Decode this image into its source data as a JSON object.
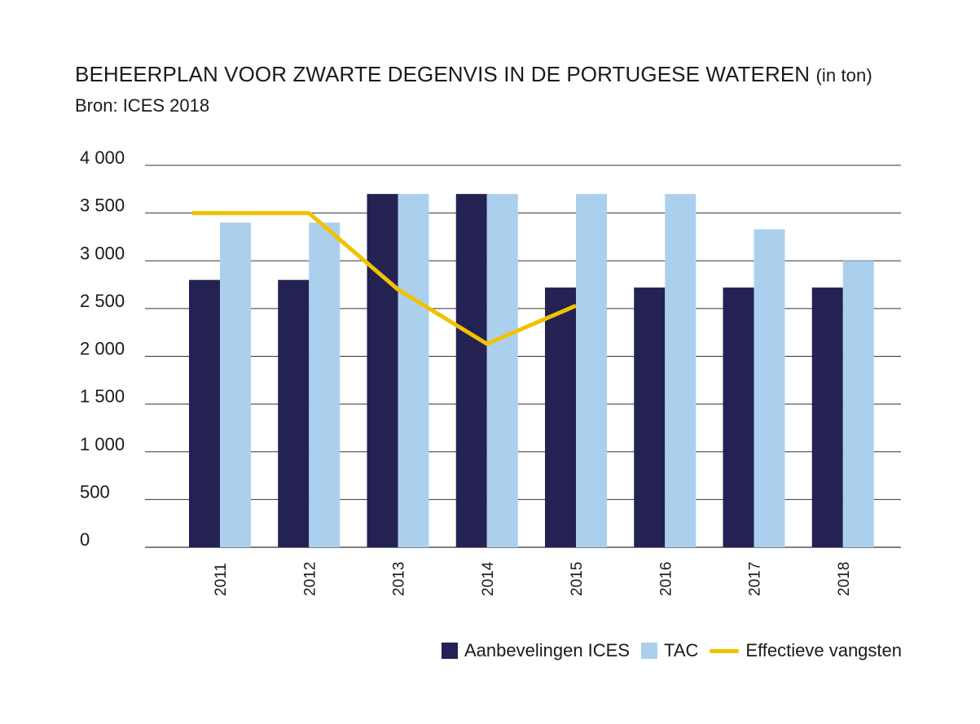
{
  "header": {
    "title": "BEHEERPLAN VOOR ZWARTE DEGENVIS IN DE PORTUGESE WATEREN",
    "title_unit": "(in ton)",
    "source": "Bron: ICES 2018"
  },
  "colors": {
    "ices": "#232252",
    "tac": "#abd0ee",
    "catches": "#f2c200",
    "grid": "#333333"
  },
  "chart_data": {
    "type": "bar",
    "categories": [
      "2011",
      "2012",
      "2013",
      "2014",
      "2015",
      "2016",
      "2017",
      "2018"
    ],
    "series": [
      {
        "name": "Aanbevelingen ICES",
        "kind": "bar",
        "values": [
          2800,
          2800,
          3700,
          3700,
          2720,
          2720,
          2720,
          2720
        ]
      },
      {
        "name": "TAC",
        "kind": "bar",
        "values": [
          3400,
          3400,
          3700,
          3700,
          3700,
          3700,
          3330,
          3000
        ]
      },
      {
        "name": "Effectieve vangsten",
        "kind": "line",
        "values": [
          3500,
          3500,
          2700,
          2130,
          2530,
          null,
          null,
          null
        ]
      }
    ],
    "yticks": [
      "4 000",
      "3 500",
      "3 000",
      "2 500",
      "2 000",
      "1 500",
      "1 000",
      "500",
      "0"
    ],
    "ylim": [
      0,
      4000
    ],
    "grid": true,
    "legend_position": "bottom-right"
  },
  "legend": {
    "ices": "Aanbevelingen ICES",
    "tac": "TAC",
    "catches": "Effectieve vangsten"
  }
}
